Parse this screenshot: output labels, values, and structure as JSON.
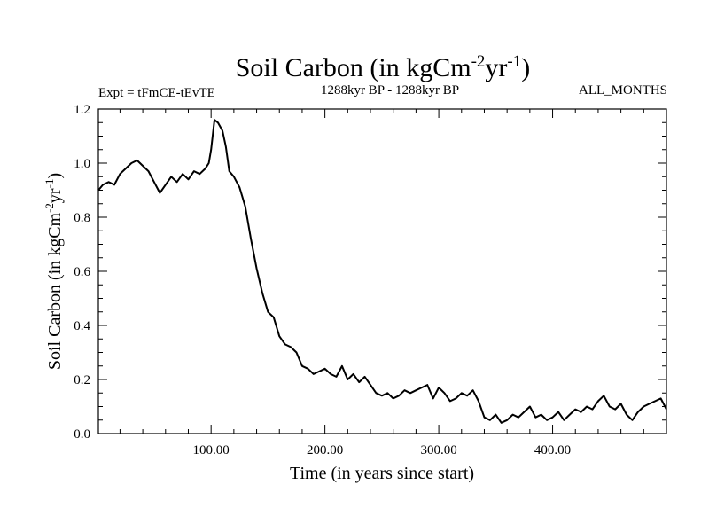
{
  "chart_data": {
    "type": "line",
    "title_main": "Soil Carbon (in kgCm",
    "title_sup1": "-2",
    "title_mid": "yr",
    "title_sup2": "-1",
    "title_end": ")",
    "subtitle_left": "Expt = tFmCE-tEvTE",
    "subtitle_center": "1288kyr BP - 1288kyr BP",
    "subtitle_right": "ALL_MONTHS",
    "xlabel": "Time (in years since start)",
    "ylabel_main": "Soil Carbon (in kgCm",
    "ylabel_sup1": "-2",
    "ylabel_mid": "yr",
    "ylabel_sup2": "-1",
    "ylabel_end": ")",
    "xlim": [
      1,
      500
    ],
    "ylim": [
      0,
      1.2
    ],
    "x_ticks": [
      100,
      200,
      300,
      400
    ],
    "x_tick_labels": [
      "100.00",
      "200.00",
      "300.00",
      "400.00"
    ],
    "y_ticks": [
      0,
      0.2,
      0.4,
      0.6,
      0.8,
      1.0,
      1.2
    ],
    "y_tick_labels": [
      "0.0",
      "0.2",
      "0.4",
      "0.6",
      "0.8",
      "1.0",
      "1.2"
    ],
    "series": [
      {
        "name": "Soil Carbon",
        "color": "#000000",
        "x": [
          1,
          5,
          10,
          15,
          20,
          25,
          30,
          35,
          40,
          45,
          50,
          55,
          60,
          65,
          70,
          75,
          80,
          85,
          90,
          95,
          98,
          100,
          103,
          106,
          110,
          113,
          116,
          120,
          125,
          130,
          135,
          140,
          145,
          150,
          155,
          160,
          165,
          170,
          175,
          180,
          185,
          190,
          195,
          200,
          205,
          210,
          215,
          220,
          225,
          230,
          235,
          240,
          245,
          250,
          255,
          260,
          265,
          270,
          275,
          280,
          285,
          290,
          295,
          300,
          305,
          310,
          315,
          320,
          325,
          330,
          335,
          340,
          345,
          350,
          355,
          360,
          365,
          370,
          375,
          380,
          385,
          390,
          395,
          400,
          405,
          410,
          415,
          420,
          425,
          430,
          435,
          440,
          445,
          450,
          455,
          460,
          465,
          470,
          475,
          480,
          485,
          490,
          495,
          500
        ],
        "y": [
          0.9,
          0.92,
          0.93,
          0.92,
          0.96,
          0.98,
          1.0,
          1.01,
          0.99,
          0.97,
          0.93,
          0.89,
          0.92,
          0.95,
          0.93,
          0.96,
          0.94,
          0.97,
          0.96,
          0.98,
          1.0,
          1.05,
          1.16,
          1.15,
          1.12,
          1.06,
          0.97,
          0.95,
          0.91,
          0.84,
          0.72,
          0.61,
          0.52,
          0.45,
          0.43,
          0.36,
          0.33,
          0.32,
          0.3,
          0.25,
          0.24,
          0.22,
          0.23,
          0.24,
          0.22,
          0.21,
          0.25,
          0.2,
          0.22,
          0.19,
          0.21,
          0.18,
          0.15,
          0.14,
          0.15,
          0.13,
          0.14,
          0.16,
          0.15,
          0.16,
          0.17,
          0.18,
          0.13,
          0.17,
          0.15,
          0.12,
          0.13,
          0.15,
          0.14,
          0.16,
          0.12,
          0.06,
          0.05,
          0.07,
          0.04,
          0.05,
          0.07,
          0.06,
          0.08,
          0.1,
          0.06,
          0.07,
          0.05,
          0.06,
          0.08,
          0.05,
          0.07,
          0.09,
          0.08,
          0.1,
          0.09,
          0.12,
          0.14,
          0.1,
          0.09,
          0.11,
          0.07,
          0.05,
          0.08,
          0.1,
          0.11,
          0.12,
          0.13,
          0.09
        ]
      }
    ]
  }
}
